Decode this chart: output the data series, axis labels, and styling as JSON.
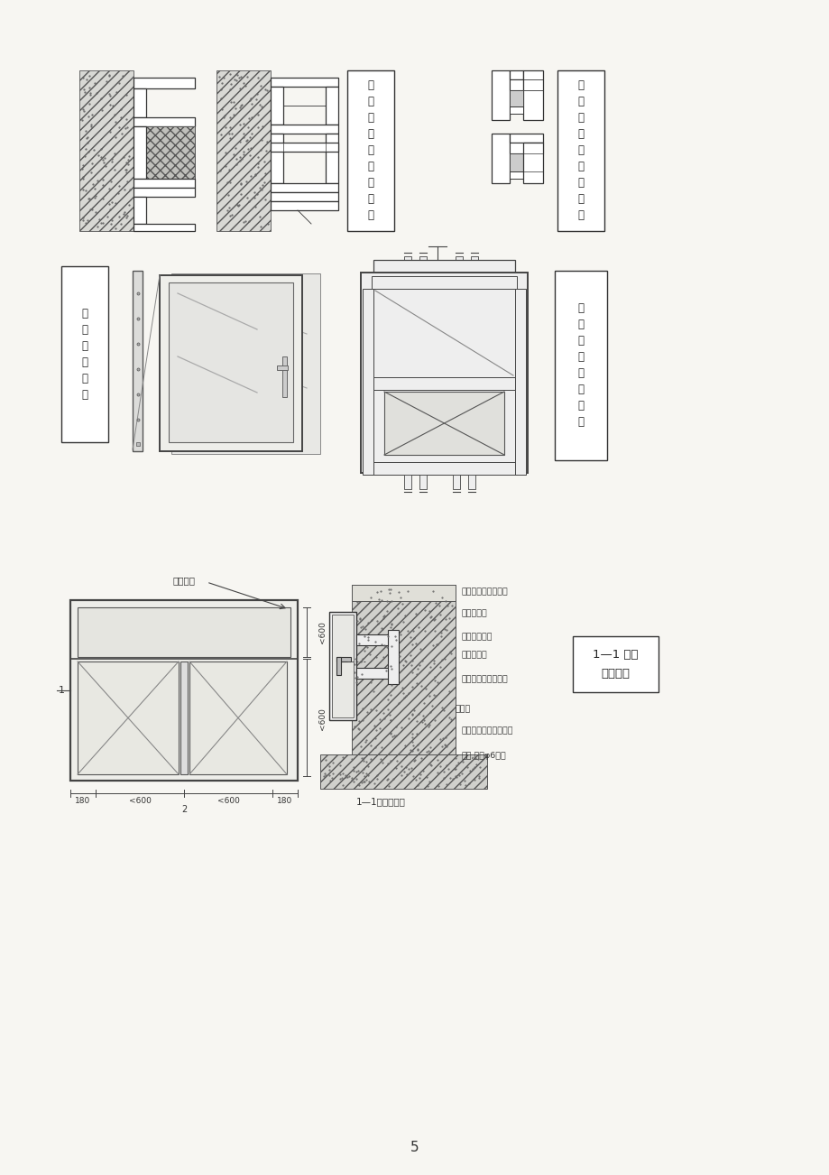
{
  "bg_color": "#f7f6f2",
  "text_color": "#222222",
  "label1": "窗框与墙的连接安装",
  "label2": "玻璃与窗扇槽的密封",
  "label3": "安装窗扇玻璃",
  "label4": "上亮与窗框的连接",
  "label5": "1—1 框与\n墙的连接",
  "label6": "鐵角位置",
  "label7": "砖或钓筋混凝土外墙",
  "label8": "面砖或抄灰",
  "label9": "嵌豆石混凝土",
  "label10": "铝合金窗框",
  "label11": "防腐处理的连接鐵脚",
  "label12": "嵌缝剂",
  "label13": "鐵脚与预埋钉钓筋焊接",
  "label14": "打孔,预埋φ6钓筋",
  "label15": "1—1框与墙连接",
  "page_num": "5"
}
